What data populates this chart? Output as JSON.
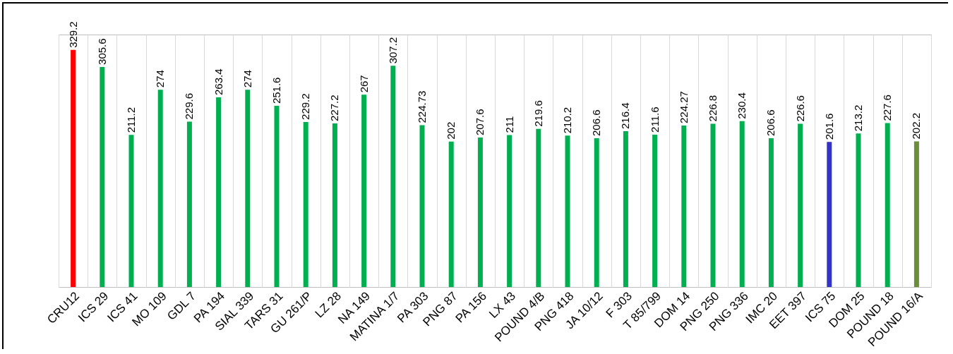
{
  "chart_data": {
    "type": "bar",
    "categories": [
      "CRU12",
      "ICS 29",
      "ICS 41",
      "MO 109",
      "GDL 7",
      "PA 194",
      "SIAL 339",
      "TARS 31",
      "GU 261/P",
      "LZ 28",
      "NA 149",
      "MATINA 1/7",
      "PA 303",
      "PNG 87",
      "PA 156",
      "LX 43",
      "POUND 4/B",
      "PNG 418",
      "JA 10/12",
      "F 303",
      "T 85/799",
      "DOM 14",
      "PNG 250",
      "PNG 336",
      "IMC 20",
      "EET 397",
      "ICS 75",
      "DOM 25",
      "POUND 18",
      "POUND 16/A"
    ],
    "values": [
      329.2,
      305.6,
      211.2,
      274,
      229.6,
      263.4,
      274,
      251.6,
      229.2,
      227.2,
      267,
      307.2,
      224.73,
      202,
      207.6,
      211,
      219.6,
      210.2,
      206.6,
      216.4,
      211.6,
      224.27,
      226.8,
      230.4,
      206.6,
      226.6,
      201.6,
      213.2,
      227.6,
      202.2
    ],
    "colors": [
      "#ff0000",
      "#00b050",
      "#00b050",
      "#00b050",
      "#00b050",
      "#00b050",
      "#00b050",
      "#00b050",
      "#00b050",
      "#00b050",
      "#00b050",
      "#00b050",
      "#00b050",
      "#00b050",
      "#00b050",
      "#00b050",
      "#00b050",
      "#00b050",
      "#00b050",
      "#00b050",
      "#00b050",
      "#00b050",
      "#00b050",
      "#00b050",
      "#00b050",
      "#00b050",
      "#3333cc",
      "#00b050",
      "#00b050",
      "#6b8e3a"
    ],
    "data_labels": true,
    "grid": "x"
  }
}
